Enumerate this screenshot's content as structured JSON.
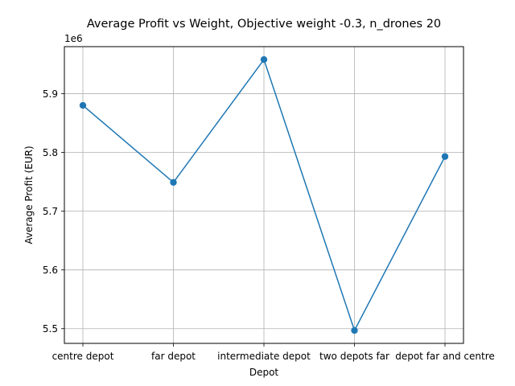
{
  "chart_data": {
    "type": "line",
    "title": "Average Profit vs Weight, Objective weight -0.3, n_drones 20",
    "xlabel": "Depot",
    "ylabel": "Average Profit (EUR)",
    "y_offset_label": "1e6",
    "categories": [
      "centre depot",
      "far depot",
      "intermediate depot",
      "two depots far",
      "depot far and centre"
    ],
    "series": [
      {
        "values": [
          5880000,
          5749000,
          5958000,
          5497000,
          5793000
        ]
      }
    ],
    "y_scale_factor": 1000000,
    "ylim": [
      5.475,
      5.98
    ],
    "yticks": [
      5.5,
      5.6,
      5.7,
      5.8,
      5.9
    ],
    "ytick_labels": [
      "5.5",
      "5.6",
      "5.7",
      "5.8",
      "5.9"
    ],
    "grid": true,
    "marker": "circle",
    "colors": {
      "line": "#1f77b4",
      "grid": "#b0b0b0",
      "axes": "#000000"
    }
  }
}
